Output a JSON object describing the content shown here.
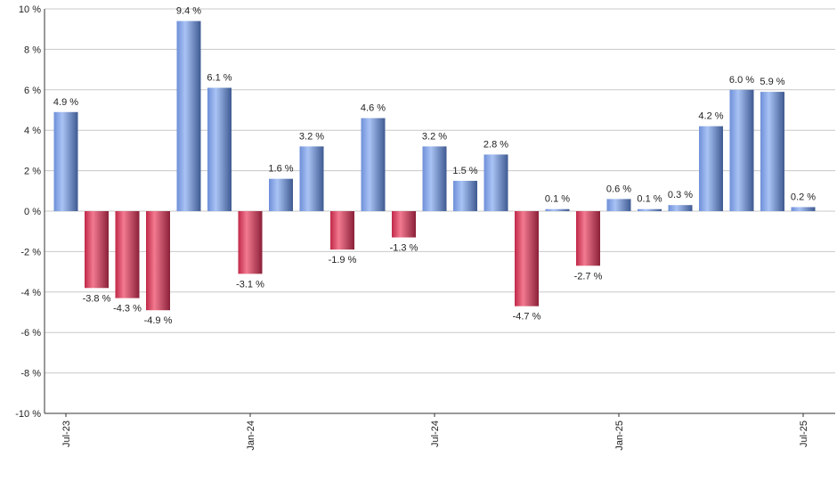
{
  "chart_data": {
    "type": "bar",
    "title": "",
    "xlabel": "",
    "ylabel": "",
    "ylim": [
      -10,
      10
    ],
    "y_ticks": [
      10,
      8,
      6,
      4,
      2,
      0,
      -2,
      -4,
      -6,
      -8,
      -10
    ],
    "y_tick_suffix": " %",
    "grid": true,
    "legend": "none",
    "categories": [
      "2023-07",
      "2023-08",
      "2023-09",
      "2023-10",
      "2023-11",
      "2023-12",
      "2024-01",
      "2024-02",
      "2024-03",
      "2024-04",
      "2024-05",
      "2024-06",
      "2024-07",
      "2024-08",
      "2024-09",
      "2024-10",
      "2024-11",
      "2024-12",
      "2025-01",
      "2025-02",
      "2025-03",
      "2025-04",
      "2025-05",
      "2025-06",
      "2025-07"
    ],
    "values": [
      4.9,
      -3.8,
      -4.3,
      -4.9,
      9.4,
      6.1,
      -3.1,
      1.6,
      3.2,
      -1.9,
      4.6,
      -1.3,
      3.2,
      1.5,
      2.8,
      -4.7,
      0.1,
      -2.7,
      0.6,
      0.1,
      0.3,
      4.2,
      6.0,
      5.9,
      0.2
    ],
    "value_labels": [
      "4.9 %",
      "-3.8 %",
      "-4.3 %",
      "-4.9 %",
      "9.4 %",
      "6.1 %",
      "-3.1 %",
      "1.6 %",
      "3.2 %",
      "-1.9 %",
      "4.6 %",
      "-1.3 %",
      "3.2 %",
      "1.5 %",
      "2.8 %",
      "-4.7 %",
      "0.1 %",
      "-2.7 %",
      "0.6 %",
      "0.1 %",
      "0.3 %",
      "4.2 %",
      "6.0 %",
      "5.9 %",
      "0.2 %"
    ],
    "x_tick_labels": [
      {
        "index": 0,
        "label": "Jul-23"
      },
      {
        "index": 6,
        "label": "Jan-24"
      },
      {
        "index": 12,
        "label": "Jul-24"
      },
      {
        "index": 18,
        "label": "Jan-25"
      },
      {
        "index": 24,
        "label": "Jul-25"
      }
    ],
    "colors": {
      "positive": "#7e9fe6",
      "positive_dark": "#4a6396",
      "negative": "#d9385a",
      "negative_dark": "#8d2c41",
      "grid": "#c8c8c8",
      "axis": "#333333"
    }
  }
}
